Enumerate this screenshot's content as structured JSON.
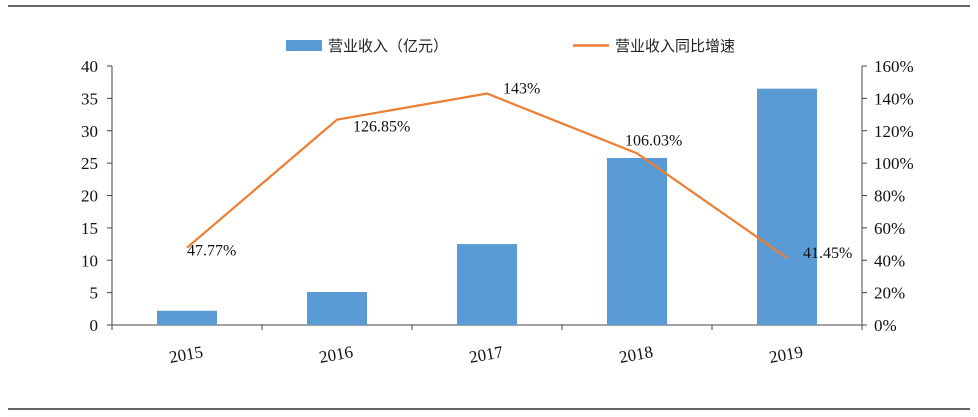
{
  "chart_data": {
    "type": "bar",
    "categories": [
      "2015",
      "2016",
      "2017",
      "2018",
      "2019"
    ],
    "series": [
      {
        "name": "营业收入（亿元）",
        "type": "bar",
        "axis": "left",
        "color": "#5b9bd5",
        "values": [
          2.2,
          5.1,
          12.5,
          25.8,
          36.5
        ]
      },
      {
        "name": "营业收入同比增速",
        "type": "line",
        "axis": "right",
        "color": "#ed7d31",
        "values": [
          47.77,
          126.85,
          143,
          106.03,
          41.45
        ],
        "labels": [
          "47.77%",
          "126.85%",
          "143%",
          "106.03%",
          "41.45%"
        ]
      }
    ],
    "ylim_left": [
      0,
      40
    ],
    "yticks_left": [
      "0",
      "5",
      "10",
      "15",
      "20",
      "25",
      "30",
      "35",
      "40"
    ],
    "ylim_right": [
      0,
      160
    ],
    "yticks_right": [
      "0%",
      "20%",
      "40%",
      "60%",
      "80%",
      "100%",
      "120%",
      "140%",
      "160%"
    ],
    "legend_position": "top",
    "grid": false
  }
}
